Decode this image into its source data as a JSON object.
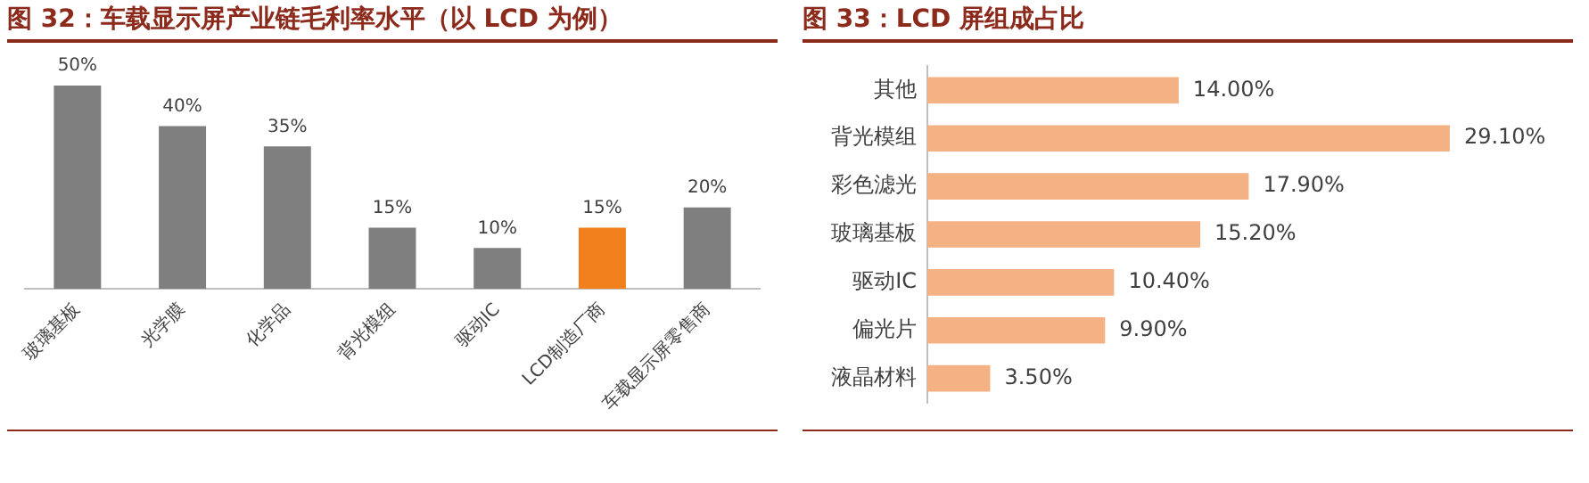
{
  "chart_data": [
    {
      "type": "bar",
      "title": "图 32：车载显示屏产业链毛利率水平（以 LCD 为例）",
      "categories": [
        "玻璃基板",
        "光学膜",
        "化学品",
        "背光模组",
        "驱动IC",
        "LCD制造厂商",
        "车载显示屏零售商"
      ],
      "values": [
        50,
        40,
        35,
        15,
        10,
        15,
        20
      ],
      "colors": [
        "#7f7f7f",
        "#7f7f7f",
        "#7f7f7f",
        "#7f7f7f",
        "#7f7f7f",
        "#f07f1c",
        "#7f7f7f"
      ],
      "value_labels": [
        "50%",
        "40%",
        "35%",
        "15%",
        "10%",
        "15%",
        "20%"
      ],
      "tick_labels": "x"
    },
    {
      "type": "bar",
      "orientation": "horizontal",
      "title": "图 33：LCD 屏组成占比",
      "categories": [
        "其他",
        "背光模组",
        "彩色滤光",
        "玻璃基板",
        "驱动IC",
        "偏光片",
        "液晶材料"
      ],
      "values": [
        14.0,
        29.1,
        17.9,
        15.2,
        10.4,
        9.9,
        3.5
      ],
      "color": "#f4b183",
      "value_labels": [
        "14.00%",
        "29.10%",
        "17.90%",
        "15.20%",
        "10.40%",
        "9.90%",
        "3.50%"
      ],
      "tick_labels": "y"
    }
  ]
}
